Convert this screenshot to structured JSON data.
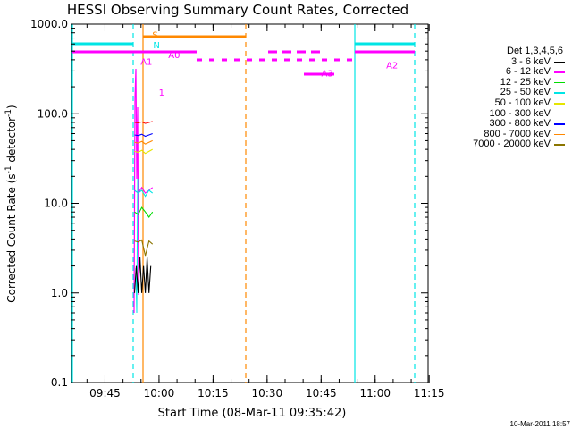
{
  "chart_data": {
    "type": "line",
    "title": "HESSI Observing Summary Count Rates, Corrected",
    "xlabel": "Start Time (08-Mar-11 09:35:42)",
    "ylabel_main": "Corrected Count Rate (s",
    "ylabel_sup1": "-1",
    "ylabel_mid": " detector",
    "ylabel_sup2": "-1",
    "ylabel_end": ")",
    "yscale": "log",
    "ylim": [
      0.1,
      1000
    ],
    "xlim_min": [
      0,
      99
    ],
    "x_ticks": [
      {
        "t": 9.3,
        "label": "09:45"
      },
      {
        "t": 24.3,
        "label": "10:00"
      },
      {
        "t": 39.3,
        "label": "10:15"
      },
      {
        "t": 54.3,
        "label": "10:30"
      },
      {
        "t": 69.3,
        "label": "10:45"
      },
      {
        "t": 84.3,
        "label": "11:00"
      },
      {
        "t": 99.3,
        "label": "11:15"
      }
    ],
    "y_ticks": [
      {
        "v": 0.1,
        "label": "0.1"
      },
      {
        "v": 1,
        "label": "1.0"
      },
      {
        "v": 10,
        "label": "10.0"
      },
      {
        "v": 100,
        "label": "100.0"
      },
      {
        "v": 1000,
        "label": "1000.0"
      }
    ],
    "legend_title": "Det 1,3,4,5,6",
    "series": [
      {
        "name": "3 - 6 keV",
        "color": "#000000",
        "x": [
          17.5,
          18.0,
          18.5,
          19.0,
          19.5,
          20.0,
          20.5,
          21.0,
          21.5,
          22.0
        ],
        "y": [
          1.0,
          2.0,
          1.0,
          2.5,
          1.0,
          2.0,
          1.0,
          2.5,
          1.0,
          2.0
        ]
      },
      {
        "name": "6 - 12 keV",
        "color": "#ff00ff",
        "x": [
          17.5,
          18.5,
          19.5,
          20.5,
          21.5,
          22.5
        ],
        "y": [
          14,
          13,
          15,
          13,
          14,
          15
        ]
      },
      {
        "name": "12 - 25 keV",
        "color": "#00dd00",
        "x": [
          17.5,
          18.5,
          19.5,
          20.5,
          21.5,
          22.5
        ],
        "y": [
          8,
          7.5,
          9,
          8,
          7,
          8
        ]
      },
      {
        "name": "25 - 50 keV",
        "color": "#00e5e5",
        "x": [
          17.5,
          18.5,
          19.5,
          20.5,
          21.5,
          22.5
        ],
        "y": [
          14,
          13,
          14,
          12,
          14,
          13
        ]
      },
      {
        "name": "50 - 100 keV",
        "color": "#e5e500",
        "x": [
          17.5,
          18.5,
          19.5,
          20.5,
          21.5,
          22.5
        ],
        "y": [
          38,
          37,
          39,
          36,
          38,
          40
        ]
      },
      {
        "name": "100 - 300 keV",
        "color": "#ff0000",
        "x": [
          17.5,
          18.5,
          19.5,
          20.5,
          21.5,
          22.5
        ],
        "y": [
          80,
          79,
          81,
          78,
          80,
          82
        ]
      },
      {
        "name": "300 - 800 keV",
        "color": "#0000ff",
        "x": [
          17.5,
          18.5,
          19.5,
          20.5,
          21.5,
          22.5
        ],
        "y": [
          58,
          57,
          59,
          56,
          58,
          60
        ]
      },
      {
        "name": "800 - 7000 keV",
        "color": "#ff8800",
        "x": [
          17.5,
          18.5,
          19.5,
          20.5,
          21.5,
          22.5
        ],
        "y": [
          48,
          47,
          49,
          46,
          48,
          50
        ]
      },
      {
        "name": "7000 - 20000 keV",
        "color": "#8b7500",
        "x": [
          17.5,
          18.5,
          19.5,
          20.5,
          21.5,
          22.5
        ],
        "y": [
          3.8,
          3.7,
          3.9,
          2.6,
          3.8,
          3.5
        ]
      }
    ],
    "markers": [
      {
        "label": "S",
        "color": "#ff8800",
        "t": 23.2,
        "y": 700
      },
      {
        "label": "N",
        "color": "#00e5e5",
        "t": 23.6,
        "y": 540
      },
      {
        "label": "A1",
        "color": "#ff00ff",
        "t": 20.8,
        "y": 350
      },
      {
        "label": "A0",
        "color": "#ff00ff",
        "t": 28.5,
        "y": 420
      },
      {
        "label": "1",
        "color": "#ff00ff",
        "t": 25.0,
        "y": 160
      },
      {
        "label": "A3",
        "color": "#ff00ff",
        "t": 71.0,
        "y": 260
      },
      {
        "label": "A2",
        "color": "#ff00ff",
        "t": 89.0,
        "y": 320
      }
    ]
  },
  "footer": {
    "timestamp": "10-Mar-2011 18:57"
  }
}
